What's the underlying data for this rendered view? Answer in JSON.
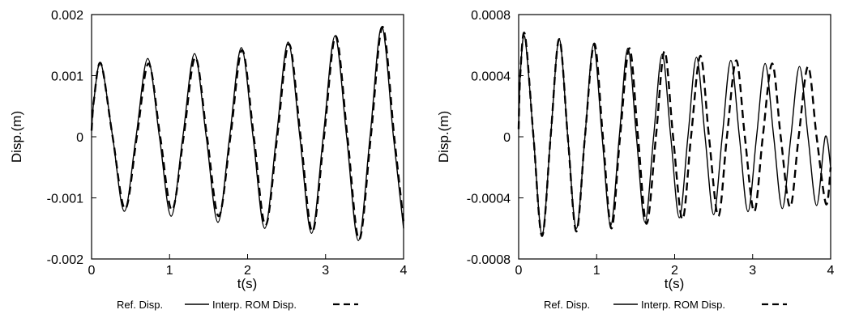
{
  "chart_data": [
    {
      "type": "line",
      "title": "",
      "xlabel": "t(s)",
      "ylabel": "Disp.(m)",
      "xlim": [
        0,
        4
      ],
      "ylim": [
        -0.002,
        0.002
      ],
      "x_ticks": [
        0,
        1,
        2,
        3,
        4
      ],
      "x_tick_labels": [
        "0",
        "1",
        "2",
        "3",
        "4"
      ],
      "y_ticks": [
        0.002,
        0.001,
        0,
        -0.001,
        -0.002
      ],
      "y_tick_labels": [
        "0.002",
        "0.001",
        "0",
        "-0.001",
        "-0.002"
      ],
      "grid": false,
      "legend_position": "bottom",
      "series": [
        {
          "name": "Ref. Disp.",
          "style": "solid",
          "color": "#000000",
          "x": [
            0,
            0.03,
            0.12,
            0.27,
            0.42,
            0.57,
            0.72,
            0.87,
            1.02,
            1.17,
            1.32,
            1.47,
            1.62,
            1.77,
            1.92,
            2.07,
            2.22,
            2.37,
            2.52,
            2.67,
            2.82,
            2.97,
            3.12,
            3.27,
            3.42,
            3.57,
            3.72,
            3.87,
            4.0
          ],
          "y": [
            0.0001,
            0.0006,
            0.0012,
            0,
            -0.00122,
            0,
            0.00128,
            0,
            -0.0013,
            0,
            0.00136,
            0,
            -0.0014,
            0,
            0.00146,
            0,
            -0.0015,
            0,
            0.00155,
            0,
            -0.00158,
            0,
            0.00165,
            0,
            -0.0017,
            0,
            0.0018,
            0,
            -0.0015
          ]
        },
        {
          "name": "Interp. ROM Disp.",
          "style": "dashed",
          "color": "#000000",
          "x": [
            0,
            0.03,
            0.12,
            0.27,
            0.43,
            0.58,
            0.73,
            0.88,
            1.03,
            1.18,
            1.33,
            1.48,
            1.63,
            1.78,
            1.93,
            2.08,
            2.23,
            2.38,
            2.53,
            2.68,
            2.83,
            2.98,
            3.13,
            3.28,
            3.43,
            3.58,
            3.73,
            3.88,
            4.0
          ],
          "y": [
            0.0001,
            0.0006,
            0.0012,
            0,
            -0.00118,
            0,
            0.0012,
            0,
            -0.0012,
            0,
            0.0013,
            0,
            -0.0013,
            0,
            0.00142,
            0,
            -0.00145,
            0,
            0.00152,
            0,
            -0.00155,
            0,
            0.00165,
            0,
            -0.00168,
            0,
            0.0018,
            0,
            -0.0014
          ]
        }
      ]
    },
    {
      "type": "line",
      "title": "",
      "xlabel": "t(s)",
      "ylabel": "Disp.(m)",
      "xlim": [
        0,
        4
      ],
      "ylim": [
        -0.0008,
        0.0008
      ],
      "x_ticks": [
        0,
        1,
        2,
        3,
        4
      ],
      "x_tick_labels": [
        "0",
        "1",
        "2",
        "3",
        "4"
      ],
      "y_ticks": [
        0.0008,
        0.0004,
        0,
        -0.0004,
        -0.0008
      ],
      "y_tick_labels": [
        "0.0008",
        "0.0004",
        "0",
        "-0.0004",
        "-0.0008"
      ],
      "grid": false,
      "legend_position": "bottom",
      "series": [
        {
          "name": "Ref. Disp.",
          "style": "solid",
          "color": "#000000",
          "x": [
            0,
            0.02,
            0.08,
            0.19,
            0.3,
            0.41,
            0.52,
            0.63,
            0.74,
            0.85,
            0.96,
            1.07,
            1.18,
            1.29,
            1.4,
            1.51,
            1.62,
            1.73,
            1.84,
            1.95,
            2.06,
            2.17,
            2.28,
            2.39,
            2.5,
            2.61,
            2.72,
            2.83,
            2.94,
            3.05,
            3.16,
            3.27,
            3.38,
            3.49,
            3.6,
            3.71,
            3.82,
            3.93,
            4.0
          ],
          "y": [
            5e-05,
            0.0004,
            0.00065,
            0,
            -0.00064,
            0,
            0.00064,
            0,
            -0.0006,
            0,
            0.0006,
            0,
            -0.00058,
            0,
            0.00058,
            0,
            -0.00056,
            0,
            0.00054,
            0,
            -0.00053,
            0,
            0.00052,
            0,
            -0.00051,
            0,
            0.0005,
            0,
            -0.00049,
            0,
            0.00048,
            0,
            -0.00047,
            0,
            0.00046,
            0,
            -0.00045,
            0,
            -0.0002
          ]
        },
        {
          "name": "Interp. ROM Disp.",
          "style": "dashed",
          "color": "#000000",
          "x": [
            0,
            0.02,
            0.08,
            0.19,
            0.3,
            0.41,
            0.52,
            0.63,
            0.74,
            0.85,
            0.97,
            1.08,
            1.19,
            1.3,
            1.42,
            1.53,
            1.64,
            1.76,
            1.87,
            1.98,
            2.1,
            2.21,
            2.33,
            2.44,
            2.56,
            2.67,
            2.79,
            2.9,
            3.02,
            3.13,
            3.25,
            3.36,
            3.48,
            3.59,
            3.71,
            3.82,
            3.94,
            4.0
          ],
          "y": [
            5e-05,
            0.0004,
            0.00067,
            0,
            -0.00065,
            0,
            0.00064,
            0,
            -0.00062,
            0,
            0.00061,
            0,
            -0.0006,
            0,
            0.00058,
            0,
            -0.00057,
            0,
            0.00056,
            0,
            -0.00054,
            0,
            0.00053,
            0,
            -0.00052,
            0,
            0.0005,
            0,
            -0.00049,
            0,
            0.00048,
            0,
            -0.00046,
            0,
            0.00046,
            0,
            -0.00044,
            -0.0002
          ]
        }
      ]
    }
  ]
}
